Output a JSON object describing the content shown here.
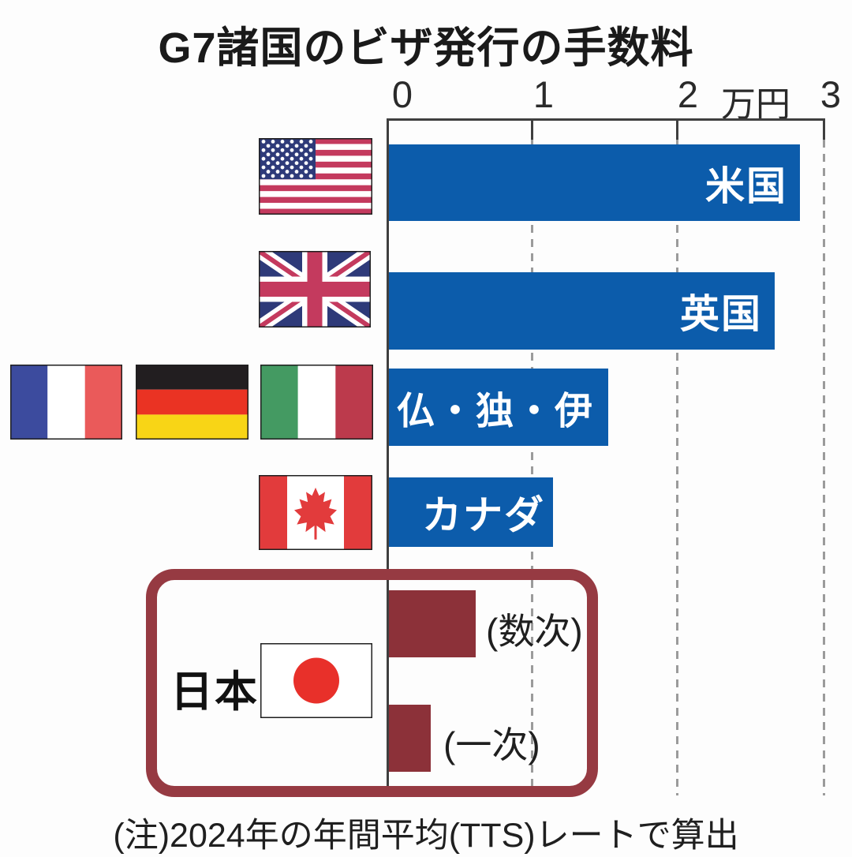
{
  "title": "G7諸国のビザ発行の手数料",
  "axis": {
    "ticks": [
      "0",
      "1",
      "2",
      "3"
    ],
    "unit": "万円"
  },
  "chart_data": {
    "type": "bar",
    "orientation": "horizontal",
    "title": "G7諸国のビザ発行の手数料",
    "unit": "万円",
    "xlim": [
      0,
      3
    ],
    "x_ticks": [
      0,
      1,
      2,
      3
    ],
    "grid": "dashed vertical gridlines at 1, 2, 3",
    "categories": [
      "米国",
      "英国",
      "仏・独・伊",
      "カナダ",
      "日本(数次)",
      "日本(一次)"
    ],
    "values": [
      2.83,
      2.66,
      1.51,
      1.13,
      0.6,
      0.29
    ],
    "series": [
      {
        "name": "米国",
        "value": 2.83,
        "color": "#0c5cab"
      },
      {
        "name": "英国",
        "value": 2.66,
        "color": "#0c5cab"
      },
      {
        "name": "仏・独・伊",
        "value": 1.51,
        "color": "#0c5cab"
      },
      {
        "name": "カナダ",
        "value": 1.13,
        "color": "#0c5cab"
      },
      {
        "name": "日本(数次)",
        "value": 0.6,
        "color": "#8c3139"
      },
      {
        "name": "日本(一次)",
        "value": 0.29,
        "color": "#8c3139"
      }
    ],
    "note": "(注)2024年の年間平均(TTS)レートで算出"
  },
  "japan": {
    "label": "日本",
    "multi": "(数次)",
    "single": "(一次)"
  },
  "note": "(注)2024年の年間平均(TTS)レートで算出",
  "flags": [
    "usa",
    "uk",
    "france",
    "germany",
    "italy",
    "canada",
    "japan"
  ],
  "colors": {
    "bar_blue": "#0c5cab",
    "bar_dark_red": "#8c3139",
    "japan_box_border": "#963a42",
    "axis": "#3f3f3f",
    "gridline": "#9b9b9b",
    "background": "#fdfdfd"
  }
}
